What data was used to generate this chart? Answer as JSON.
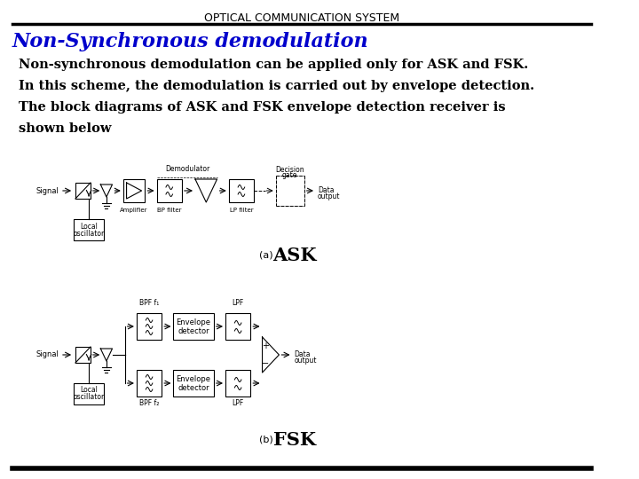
{
  "title": "OPTICAL COMMUNICATION SYSTEM",
  "heading": "Non-Synchronous demodulation",
  "line1": "Non-synchronous demodulation can be applied only for ASK and FSK.",
  "line2": "In this scheme, the demodulation is carried out by envelope detection.",
  "line3": "The block diagrams of ASK and FSK envelope detection receiver is",
  "line4": "shown below",
  "ask_label": "ASK",
  "fsk_label": "FSK",
  "bg_color": "#ffffff",
  "title_color": "#000000",
  "heading_color": "#0000cc",
  "body_color": "#000000"
}
